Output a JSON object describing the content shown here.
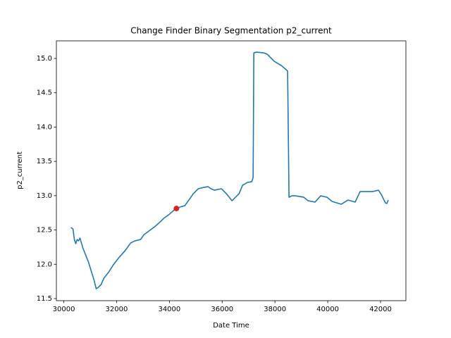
{
  "chart_data": {
    "type": "line",
    "title": "Change Finder Binary Segmentation p2_current",
    "x_label": "Date Time",
    "y_label": "p2_current",
    "x": [
      30267,
      30347,
      30400,
      30453,
      30507,
      30560,
      30613,
      30667,
      30720,
      30827,
      30933,
      31040,
      31147,
      31227,
      31307,
      31413,
      31520,
      31707,
      31893,
      32107,
      32320,
      32533,
      32693,
      32907,
      33040,
      33227,
      33440,
      33653,
      33787,
      33973,
      34187,
      34400,
      34587,
      34720,
      34907,
      35093,
      35307,
      35467,
      35573,
      35707,
      35973,
      36160,
      36373,
      36507,
      36640,
      36773,
      36960,
      37120,
      37173,
      37200,
      37307,
      37573,
      37707,
      37973,
      38240,
      38427,
      38480,
      38533,
      38640,
      38773,
      39093,
      39253,
      39520,
      39733,
      39973,
      40160,
      40507,
      40773,
      41040,
      41227,
      41440,
      41707,
      41920,
      42027,
      42187,
      42240,
      42293
    ],
    "values": [
      12.536,
      12.515,
      12.361,
      12.3,
      12.361,
      12.341,
      12.382,
      12.31,
      12.238,
      12.136,
      12.033,
      11.9,
      11.766,
      11.643,
      11.663,
      11.704,
      11.797,
      11.889,
      12.002,
      12.105,
      12.197,
      12.31,
      12.341,
      12.361,
      12.433,
      12.485,
      12.546,
      12.618,
      12.67,
      12.721,
      12.793,
      12.834,
      12.854,
      12.926,
      13.029,
      13.101,
      13.121,
      13.131,
      13.101,
      13.08,
      13.101,
      13.029,
      12.926,
      12.977,
      13.029,
      13.152,
      13.193,
      13.203,
      13.265,
      15.082,
      15.092,
      15.082,
      15.062,
      14.959,
      14.897,
      14.836,
      14.815,
      12.977,
      12.998,
      12.998,
      12.977,
      12.926,
      12.906,
      12.998,
      12.977,
      12.916,
      12.875,
      12.936,
      12.906,
      13.06,
      13.06,
      13.06,
      13.08,
      13.019,
      12.895,
      12.885,
      12.936
    ],
    "color": "#1f77b4",
    "change_points": {
      "x": [
        34267
      ],
      "values": [
        12.813
      ],
      "color": "#d62728"
    },
    "xlim": [
      29718,
      42962
    ],
    "xticks": [
      30000,
      32000,
      34000,
      36000,
      38000,
      40000,
      42000
    ],
    "ylim": [
      11.469,
      15.257
    ],
    "yticks": [
      11.5,
      {
        "value": 12,
        "label": "12.0"
      },
      12.5,
      {
        "value": 13,
        "label": "13.0"
      },
      13.5,
      {
        "value": 14,
        "label": "14.0"
      },
      14.5,
      {
        "value": 15,
        "label": "15.0"
      }
    ]
  }
}
